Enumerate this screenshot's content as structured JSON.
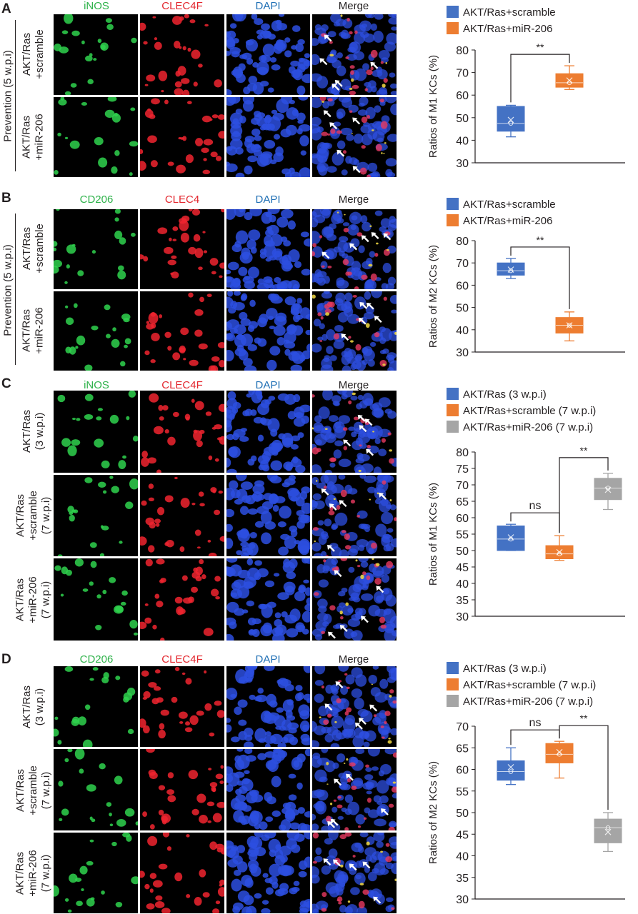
{
  "panels": [
    {
      "letter": "A",
      "channels": [
        "iNOS",
        "CLEC4F",
        "DAPI",
        "Merge"
      ],
      "channel_colors": [
        "#2eb24a",
        "#e3262d",
        "#1f6fb5",
        "#231f20"
      ],
      "group_label": "Prevention (5 w.p.i)",
      "rows": [
        {
          "line1": "AKT/Ras",
          "line2": "+scramble"
        },
        {
          "line1": "AKT/Ras",
          "line2": "+miR-206"
        }
      ]
    },
    {
      "letter": "B",
      "channels": [
        "CD206",
        "CLEC4",
        "DAPI",
        "Merge"
      ],
      "channel_colors": [
        "#2eb24a",
        "#e3262d",
        "#1f6fb5",
        "#231f20"
      ],
      "group_label": "Prevention (5 w.p.i)",
      "rows": [
        {
          "line1": "AKT/Ras",
          "line2": "+scramble"
        },
        {
          "line1": "AKT/Ras",
          "line2": "+miR-206"
        }
      ]
    },
    {
      "letter": "C",
      "channels": [
        "iNOS",
        "CLEC4F",
        "DAPI",
        "Merge"
      ],
      "channel_colors": [
        "#2eb24a",
        "#e3262d",
        "#1f6fb5",
        "#231f20"
      ],
      "group_label": "",
      "rows": [
        {
          "line1": "AKT/Ras",
          "line2": "(3 w.p.i)"
        },
        {
          "line1": "AKT/Ras",
          "line2": "+scramble",
          "line3": "(7 w.p.i)"
        },
        {
          "line1": "AKT/Ras",
          "line2": "+miR-206",
          "line3": "(7 w.p.i)"
        }
      ]
    },
    {
      "letter": "D",
      "channels": [
        "CD206",
        "CLEC4F",
        "DAPI",
        "Merge"
      ],
      "channel_colors": [
        "#2eb24a",
        "#e3262d",
        "#1f6fb5",
        "#231f20"
      ],
      "group_label": "",
      "rows": [
        {
          "line1": "AKT/Ras",
          "line2": "(3 w.p.i)"
        },
        {
          "line1": "AKT/Ras",
          "line2": "+scramble",
          "line3": "(7 w.p.i)"
        },
        {
          "line1": "AKT/Ras",
          "line2": "+miR-206",
          "line3": "(7 w.p.i)"
        }
      ]
    }
  ],
  "chart_data": [
    {
      "type": "box",
      "ylabel": "Ratios of M1 KCs (%)",
      "ylim": [
        30,
        80
      ],
      "yticks": [
        30,
        40,
        50,
        60,
        70,
        80
      ],
      "legend_position": "top",
      "series": [
        {
          "name": "AKT/Ras+scramble",
          "color": "#4472c4",
          "min": 41.5,
          "q1": 44,
          "median": 47.5,
          "q3": 55,
          "max": 55.5,
          "mean": 49
        },
        {
          "name": "AKT/Ras+miR-206",
          "color": "#ed7d31",
          "min": 62.5,
          "q1": 63.5,
          "median": 65.5,
          "q3": 69.5,
          "max": 73,
          "mean": 66.5
        }
      ],
      "significance": [
        {
          "from": 0,
          "to": 1,
          "label": "**"
        }
      ]
    },
    {
      "type": "box",
      "ylabel": "Ratios of M2 KCs (%)",
      "ylim": [
        30,
        80
      ],
      "yticks": [
        30,
        40,
        50,
        60,
        70,
        80
      ],
      "legend_position": "top",
      "series": [
        {
          "name": "AKT/Ras+scramble",
          "color": "#4472c4",
          "min": 63,
          "q1": 64.5,
          "median": 66.5,
          "q3": 70,
          "max": 72,
          "mean": 67
        },
        {
          "name": "AKT/Ras+miR-206",
          "color": "#ed7d31",
          "min": 35,
          "q1": 38.5,
          "median": 42,
          "q3": 45.5,
          "max": 48,
          "mean": 42
        }
      ],
      "significance": [
        {
          "from": 0,
          "to": 1,
          "label": "**"
        }
      ]
    },
    {
      "type": "box",
      "ylabel": "Ratios of M1 KCs (%)",
      "ylim": [
        30,
        80
      ],
      "yticks": [
        30,
        35,
        40,
        45,
        50,
        55,
        60,
        65,
        70,
        75,
        80
      ],
      "legend_position": "top",
      "series": [
        {
          "name": "AKT/Ras (3 w.p.i)",
          "color": "#4472c4",
          "min": 50,
          "q1": 50,
          "median": 53.5,
          "q3": 57.5,
          "max": 58,
          "mean": 54
        },
        {
          "name": "AKT/Ras+scramble (7 w.p.i)",
          "color": "#ed7d31",
          "min": 47,
          "q1": 47.5,
          "median": 49,
          "q3": 51.5,
          "max": 54.5,
          "mean": 49.5
        },
        {
          "name": "AKT/Ras+miR-206 (7 w.p.i)",
          "color": "#a5a5a5",
          "min": 62.5,
          "q1": 65.5,
          "median": 69,
          "q3": 72,
          "max": 73.5,
          "mean": 68.5
        }
      ],
      "significance": [
        {
          "from": 0,
          "to": 1,
          "label": "ns"
        },
        {
          "from": 1,
          "to": 2,
          "label": "**"
        }
      ]
    },
    {
      "type": "box",
      "ylabel": "Ratios of M2 KCs (%)",
      "ylim": [
        30,
        70
      ],
      "yticks": [
        30,
        35,
        40,
        45,
        50,
        55,
        60,
        65,
        70
      ],
      "legend_position": "top",
      "series": [
        {
          "name": "AKT/Ras (3 w.p.i)",
          "color": "#4472c4",
          "min": 56.5,
          "q1": 57.5,
          "median": 59.5,
          "q3": 62,
          "max": 65,
          "mean": 60.5
        },
        {
          "name": "AKT/Ras+scramble (7 w.p.i)",
          "color": "#ed7d31",
          "min": 58,
          "q1": 61.5,
          "median": 63.5,
          "q3": 66,
          "max": 66.5,
          "mean": 64
        },
        {
          "name": "AKT/Ras+miR-206 (7 w.p.i)",
          "color": "#a5a5a5",
          "min": 41,
          "q1": 43,
          "median": 46.5,
          "q3": 48.5,
          "max": 50,
          "mean": 45.5
        }
      ],
      "significance": [
        {
          "from": 0,
          "to": 1,
          "label": "ns"
        },
        {
          "from": 1,
          "to": 2,
          "label": "**"
        }
      ]
    }
  ]
}
